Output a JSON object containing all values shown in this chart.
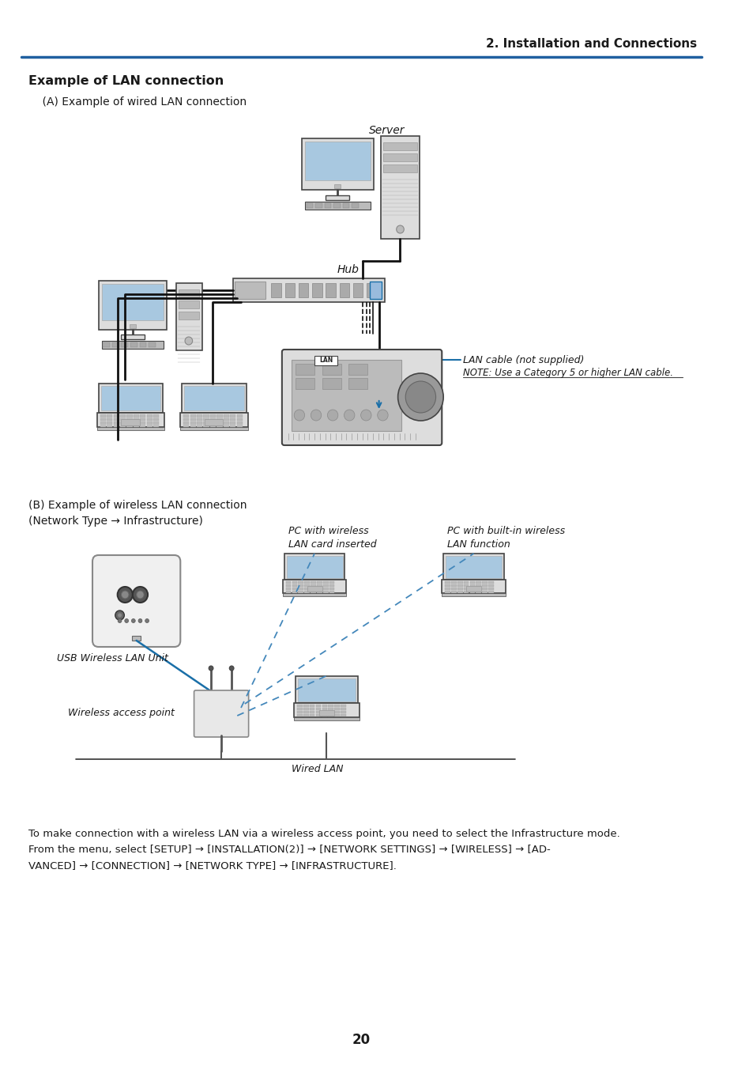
{
  "page_background": "#ffffff",
  "header_text": "2. Installation and Connections",
  "header_color": "#1a1a1a",
  "header_line_color": "#2060a0",
  "section_title": "Example of LAN connection",
  "subtitle_a": "    (A) Example of wired LAN connection",
  "subtitle_b": "(B) Example of wireless LAN connection\n(Network Type → Infrastructure)",
  "label_server": "Server",
  "label_hub": "Hub",
  "label_lan_cable": "LAN cable (not supplied)",
  "label_note": "NOTE: Use a Category 5 or higher LAN cable.",
  "label_lan": "LAN",
  "label_usb_wireless": "USB Wireless LAN Unit",
  "label_wireless_ap": "Wireless access point",
  "label_wired_lan": "Wired LAN",
  "label_pc_wireless": "PC with wireless\nLAN card inserted",
  "label_pc_builtin": "PC with built-in wireless\nLAN function",
  "footer_text": "20",
  "body_text_line1": "To make connection with a wireless LAN via a wireless access point, you need to select the Infrastructure mode.",
  "body_text_line2": "From the menu, select [SETUP] → [INSTALLATION(2)] → [NETWORK SETTINGS] → [WIRELESS] → [AD-",
  "body_text_line3": "VANCED] → [CONNECTION] → [NETWORK TYPE] → [INFRASTRUCTURE].",
  "label_color_blue": "#1a6fa8",
  "line_color_normal": "#111111",
  "line_color_dashed": "#4488bb",
  "gray_dark": "#444444",
  "gray_mid": "#888888",
  "gray_light": "#cccccc",
  "gray_lighter": "#dddddd",
  "screen_blue": "#a8c8e0"
}
